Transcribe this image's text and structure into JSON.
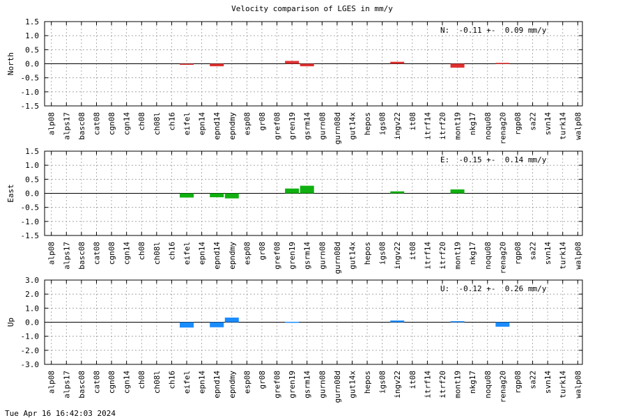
{
  "page": {
    "title": "Velocity comparison of LGES in mm/y",
    "timestamp": "Tue Apr 16 16:42:03 2024"
  },
  "chart_data": [
    {
      "type": "bar",
      "ylabel": "North",
      "stat": "N:  -0.11 +-  0.09 mm/y",
      "ylim": [
        -1.5,
        1.5
      ],
      "yticks": [
        "1.5",
        "1.0",
        "0.5",
        "0.0",
        "-0.5",
        "-1.0",
        "-1.5"
      ],
      "color": "#e03030",
      "grid": true,
      "categories": [
        "alp08",
        "alps17",
        "basc08",
        "cat08",
        "cgn08",
        "cgn14",
        "ch08",
        "ch08l",
        "ch16",
        "eifel",
        "epn14",
        "epnd14",
        "epndmy",
        "esp08",
        "gr08",
        "gref08",
        "gren19",
        "gsrm14",
        "gurn08",
        "gurn08d",
        "gut14x",
        "hepos",
        "igs08",
        "ingv22",
        "it08",
        "itrf14",
        "itrf20",
        "mont19",
        "nkg17",
        "noqu08",
        "renag20",
        "rgp08",
        "sa22",
        "svn14",
        "turk14",
        "walp08"
      ],
      "values": [
        null,
        null,
        null,
        null,
        null,
        null,
        null,
        null,
        null,
        -0.02,
        null,
        -0.09,
        null,
        null,
        null,
        null,
        0.1,
        -0.09,
        null,
        null,
        null,
        null,
        null,
        0.07,
        null,
        null,
        null,
        -0.14,
        null,
        null,
        0.03,
        null,
        null,
        null,
        null,
        null
      ]
    },
    {
      "type": "bar",
      "ylabel": "East",
      "stat": "E:  -0.15 +-  0.14 mm/y",
      "ylim": [
        -1.5,
        1.5
      ],
      "yticks": [
        "1.5",
        "1.0",
        "0.5",
        "0.0",
        "-0.5",
        "-1.0",
        "-1.5"
      ],
      "color": "#10b010",
      "grid": true,
      "categories": [
        "alp08",
        "alps17",
        "basc08",
        "cat08",
        "cgn08",
        "cgn14",
        "ch08",
        "ch08l",
        "ch16",
        "eifel",
        "epn14",
        "epnd14",
        "epndmy",
        "esp08",
        "gr08",
        "gref08",
        "gren19",
        "gsrm14",
        "gurn08",
        "gurn08d",
        "gut14x",
        "hepos",
        "igs08",
        "ingv22",
        "it08",
        "itrf14",
        "itrf20",
        "mont19",
        "nkg17",
        "noqu08",
        "renag20",
        "rgp08",
        "sa22",
        "svn14",
        "turk14",
        "walp08"
      ],
      "values": [
        null,
        null,
        null,
        null,
        null,
        null,
        null,
        null,
        null,
        -0.15,
        null,
        -0.14,
        -0.18,
        null,
        null,
        null,
        0.17,
        0.27,
        null,
        null,
        null,
        null,
        null,
        0.07,
        null,
        null,
        null,
        0.14,
        null,
        null,
        null,
        null,
        null,
        null,
        null,
        null
      ]
    },
    {
      "type": "bar",
      "ylabel": "Up",
      "stat": "U:  -0.12 +-  0.26 mm/y",
      "ylim": [
        -3.0,
        3.0
      ],
      "yticks": [
        "3.0",
        "2.0",
        "1.0",
        "0.0",
        "-1.0",
        "-2.0",
        "-3.0"
      ],
      "color": "#1a8cff",
      "grid": true,
      "categories": [
        "alp08",
        "alps17",
        "basc08",
        "cat08",
        "cgn08",
        "cgn14",
        "ch08",
        "ch08l",
        "ch16",
        "eifel",
        "epn14",
        "epnd14",
        "epndmy",
        "esp08",
        "gr08",
        "gref08",
        "gren19",
        "gsrm14",
        "gurn08",
        "gurn08d",
        "gut14x",
        "hepos",
        "igs08",
        "ingv22",
        "it08",
        "itrf14",
        "itrf20",
        "mont19",
        "nkg17",
        "noqu08",
        "renag20",
        "rgp08",
        "sa22",
        "svn14",
        "turk14",
        "walp08"
      ],
      "values": [
        null,
        null,
        null,
        null,
        null,
        null,
        null,
        null,
        null,
        -0.38,
        null,
        -0.36,
        0.33,
        null,
        null,
        null,
        0.03,
        null,
        null,
        null,
        null,
        null,
        null,
        0.12,
        null,
        null,
        null,
        0.07,
        null,
        null,
        -0.32,
        null,
        null,
        null,
        null,
        null
      ]
    }
  ]
}
